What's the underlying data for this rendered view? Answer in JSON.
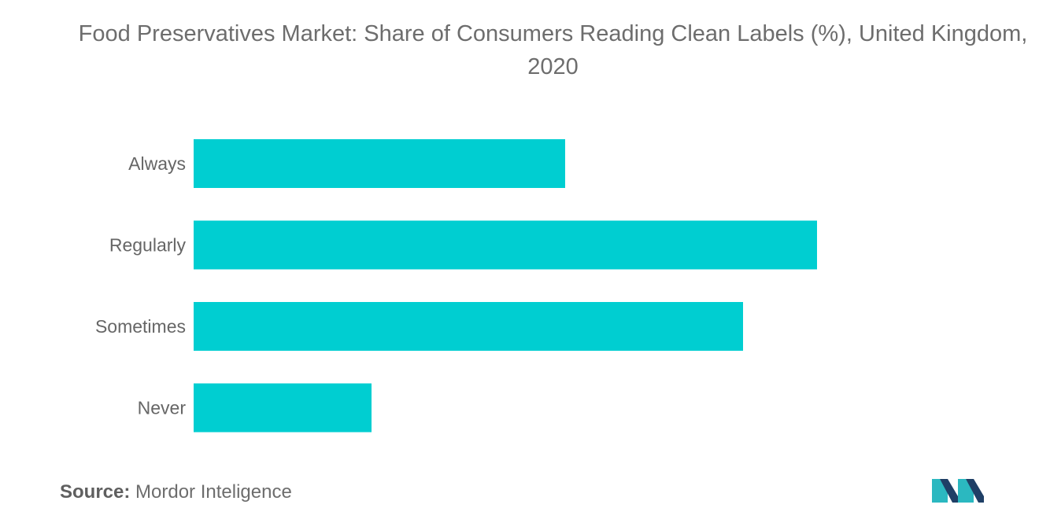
{
  "title": "Food Preservatives Market: Share of Consumers Reading Clean Labels (%), United Kingdom, 2020",
  "source": {
    "label": "Source:",
    "text": "Mordor Inteligence"
  },
  "colors": {
    "bar": "#00CED1",
    "label_text": "#666666",
    "logo_dark": "#1f3f66",
    "logo_teal": "#2bb8c0"
  },
  "logo_icon": "mordor-intelligence-logo-icon",
  "chart_data": {
    "type": "bar",
    "orientation": "horizontal",
    "title": "Food Preservatives Market: Share of Consumers Reading Clean Labels (%), United Kingdom, 2020",
    "categories": [
      "Always",
      "Regularly",
      "Sometimes",
      "Never"
    ],
    "values": [
      23.6,
      39.6,
      34.9,
      11.3
    ],
    "xlim": [
      0,
      50
    ],
    "grid": false,
    "legend": "none"
  }
}
